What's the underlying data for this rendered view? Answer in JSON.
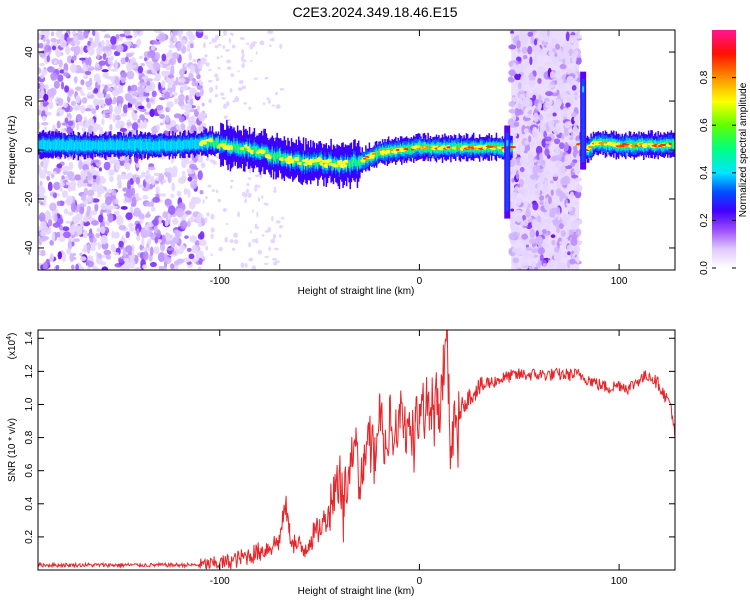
{
  "page": {
    "title": "C2E3.2024.349.18.46.E15"
  },
  "chart_data": [
    {
      "type": "heatmap",
      "title": "C2E3.2024.349.18.46.E15",
      "xlabel": "Height of straight line (km)",
      "ylabel": "Frequency (Hz)",
      "xlim": [
        -191,
        128
      ],
      "ylim": [
        -49,
        49
      ],
      "xticks": [
        -100,
        0,
        100
      ],
      "xtick_labels": [
        "-100",
        "0",
        "100"
      ],
      "yticks": [
        -40,
        -20,
        0,
        20,
        40
      ],
      "ytick_labels": [
        "-40",
        "-20",
        "0",
        "20",
        "40"
      ],
      "grid": false,
      "colorbar": {
        "label": "Normalized spectral amplitude",
        "range": [
          0,
          1
        ],
        "ticks": [
          0,
          0.2,
          0.4,
          0.6,
          0.8
        ],
        "tick_labels": [
          "0.0",
          "0.2",
          "0.4",
          "0.6",
          "0.8"
        ],
        "colors": [
          "#ffffff",
          "#e8d8ff",
          "#b080ff",
          "#6a00ff",
          "#0000ff",
          "#00ffff",
          "#00ff00",
          "#ffff00",
          "#ff8000",
          "#ff0000",
          "#ff1493"
        ]
      },
      "ridge": {
        "x": [
          -190,
          -150,
          -120,
          -105,
          -90,
          -80,
          -70,
          -60,
          -50,
          -40,
          -30,
          -20,
          -10,
          0,
          10,
          20,
          30,
          40,
          44,
          48,
          80,
          84,
          88,
          100,
          110,
          128
        ],
        "y": [
          2,
          2,
          2,
          3,
          1,
          -1,
          -3,
          -5,
          -5,
          -6,
          -5,
          -1,
          0,
          1,
          1,
          1,
          1,
          1,
          0,
          2,
          2,
          0,
          3,
          2,
          2,
          2
        ]
      },
      "noise_regions": [
        {
          "x_range": [
            -191,
            -108
          ],
          "density": "high"
        },
        {
          "x_range": [
            46,
            80
          ],
          "density": "high"
        }
      ],
      "spikes": [
        {
          "x": 44,
          "y_range": [
            -28,
            10
          ]
        },
        {
          "x": 82,
          "y_range": [
            -8,
            32
          ]
        }
      ]
    },
    {
      "type": "line",
      "xlabel": "Height of straight line (km)",
      "ylabel": "SNR (10 * v/v)",
      "y_multiplier": "(x10",
      "y_multiplier_exp": "4",
      "y_multiplier_close": ")",
      "xlim": [
        -191,
        128
      ],
      "ylim": [
        0,
        1.45
      ],
      "xticks": [
        -100,
        0,
        100
      ],
      "xtick_labels": [
        "-100",
        "0",
        "100"
      ],
      "yticks": [
        0.2,
        0.4,
        0.6,
        0.8,
        1.0,
        1.2,
        1.4
      ],
      "ytick_labels": [
        "0.2",
        "0.4",
        "0.6",
        "0.8",
        "1.0",
        "1.2",
        "1.4"
      ],
      "grid": false,
      "series": [
        {
          "color": "#e8262a",
          "x": [
            -191,
            -180,
            -170,
            -160,
            -150,
            -140,
            -130,
            -120,
            -110,
            -100,
            -95,
            -90,
            -85,
            -80,
            -75,
            -70,
            -67,
            -65,
            -62,
            -58,
            -55,
            -50,
            -45,
            -42,
            -40,
            -38,
            -35,
            -32,
            -30,
            -28,
            -25,
            -22,
            -20,
            -18,
            -15,
            -12,
            -10,
            -8,
            -5,
            -2,
            0,
            2,
            5,
            8,
            10,
            12,
            14,
            15,
            17,
            20,
            22,
            25,
            28,
            30,
            35,
            40,
            45,
            50,
            60,
            70,
            80,
            85,
            90,
            95,
            100,
            105,
            110,
            115,
            120,
            123,
            126,
            128
          ],
          "y": [
            0.03,
            0.03,
            0.03,
            0.03,
            0.03,
            0.03,
            0.03,
            0.03,
            0.03,
            0.04,
            0.05,
            0.07,
            0.09,
            0.11,
            0.14,
            0.18,
            0.4,
            0.22,
            0.15,
            0.12,
            0.18,
            0.25,
            0.35,
            0.5,
            0.62,
            0.45,
            0.55,
            0.75,
            0.5,
            0.7,
            0.85,
            0.6,
            1.05,
            0.75,
            0.9,
            0.85,
            1.0,
            0.8,
            0.95,
            0.9,
            1.0,
            1.05,
            0.95,
            1.1,
            0.85,
            1.2,
            1.46,
            0.9,
            0.82,
            0.95,
            1.0,
            1.05,
            1.08,
            1.1,
            1.13,
            1.15,
            1.17,
            1.18,
            1.18,
            1.18,
            1.18,
            1.15,
            1.12,
            1.1,
            1.12,
            1.1,
            1.15,
            1.18,
            1.12,
            1.05,
            1.0,
            0.8
          ]
        }
      ]
    }
  ]
}
